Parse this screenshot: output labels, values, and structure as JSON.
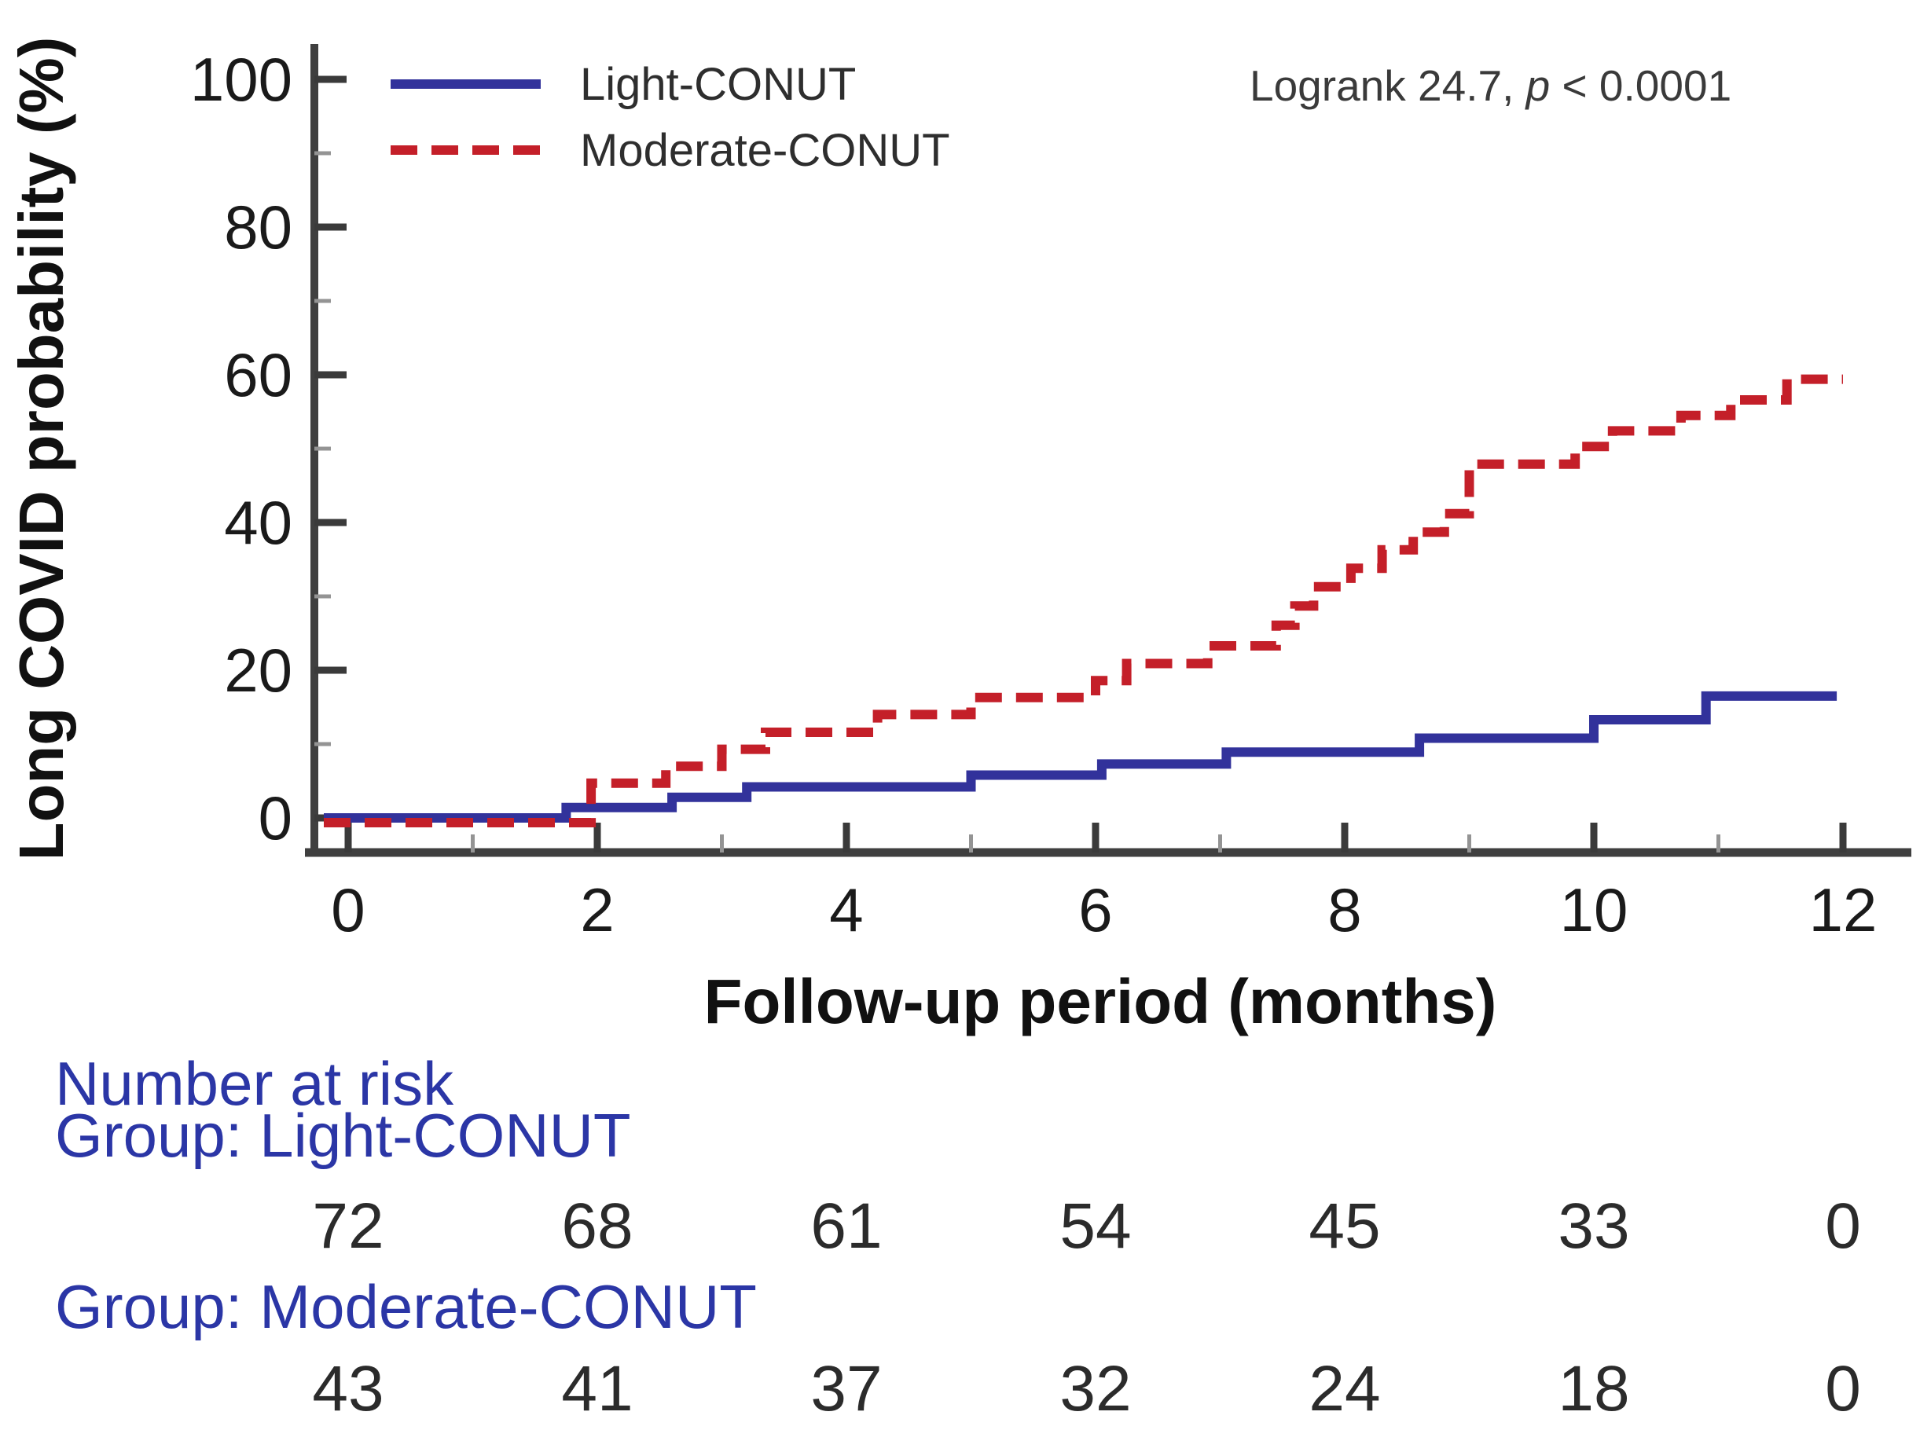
{
  "figure": {
    "background_color": "#ffffff",
    "legend": {
      "items": [
        {
          "label": "Light-CONUT",
          "color": "#32329b",
          "dash": "solid"
        },
        {
          "label": "Moderate-CONUT",
          "color": "#c41f29",
          "dash": "dashed"
        }
      ]
    },
    "annotation": {
      "prefix": "Logrank 24.7, ",
      "p_symbol": "p",
      "suffix": " < 0.0001"
    },
    "chart_data": {
      "type": "line",
      "subtype": "kaplan-meier-cumulative-incidence-steps",
      "title": "",
      "xlabel": "Follow-up period (months)",
      "ylabel": "Long COVID probability (%)",
      "xlim": [
        0,
        12
      ],
      "ylim": [
        0,
        100
      ],
      "xticks": [
        0,
        2,
        4,
        6,
        8,
        10,
        12
      ],
      "xminorticks": [
        1,
        3,
        5,
        7,
        9,
        11
      ],
      "yticks": [
        0,
        20,
        40,
        60,
        80,
        100
      ],
      "yminorticks": [
        10,
        30,
        50,
        70,
        90
      ],
      "grid": false,
      "legend_position": "top-left-inside",
      "annotation_text": "Logrank 24.7, p < 0.0001",
      "series": [
        {
          "name": "Light-CONUT",
          "color": "#32329b",
          "style": "solid",
          "end_month": 11.95,
          "points": [
            [
              0,
              0
            ],
            [
              1.75,
              1.4
            ],
            [
              2.6,
              2.8
            ],
            [
              3.2,
              4.2
            ],
            [
              5.0,
              5.8
            ],
            [
              6.05,
              7.3
            ],
            [
              7.05,
              8.9
            ],
            [
              8.6,
              10.8
            ],
            [
              10.0,
              13.3
            ],
            [
              10.9,
              16.5
            ]
          ]
        },
        {
          "name": "Moderate-CONUT",
          "color": "#c41f29",
          "style": "dashed",
          "end_month": 12.0,
          "points": [
            [
              0,
              0
            ],
            [
              1.95,
              4.7
            ],
            [
              2.55,
              7.0
            ],
            [
              3.0,
              9.3
            ],
            [
              3.35,
              11.6
            ],
            [
              4.25,
              14.0
            ],
            [
              5.0,
              16.3
            ],
            [
              6.0,
              18.6
            ],
            [
              6.25,
              20.9
            ],
            [
              6.9,
              23.3
            ],
            [
              7.45,
              26.1
            ],
            [
              7.6,
              28.7
            ],
            [
              7.75,
              31.3
            ],
            [
              8.05,
              33.8
            ],
            [
              8.3,
              36.3
            ],
            [
              8.55,
              38.7
            ],
            [
              8.8,
              41.2
            ],
            [
              9.0,
              47.9
            ],
            [
              9.85,
              50.3
            ],
            [
              10.15,
              52.4
            ],
            [
              10.7,
              54.5
            ],
            [
              11.1,
              56.6
            ],
            [
              11.55,
              59.4
            ]
          ]
        }
      ]
    },
    "at_risk": {
      "header": "Number at risk",
      "text_color": "#2b36a6",
      "columns_months": [
        0,
        2,
        4,
        6,
        8,
        10,
        12
      ],
      "groups": [
        {
          "label": "Group: Light-CONUT",
          "counts": [
            "72",
            "68",
            "61",
            "54",
            "45",
            "33",
            "0"
          ]
        },
        {
          "label": "Group: Moderate-CONUT",
          "counts": [
            "43",
            "41",
            "37",
            "32",
            "24",
            "18",
            "0"
          ]
        }
      ]
    }
  }
}
